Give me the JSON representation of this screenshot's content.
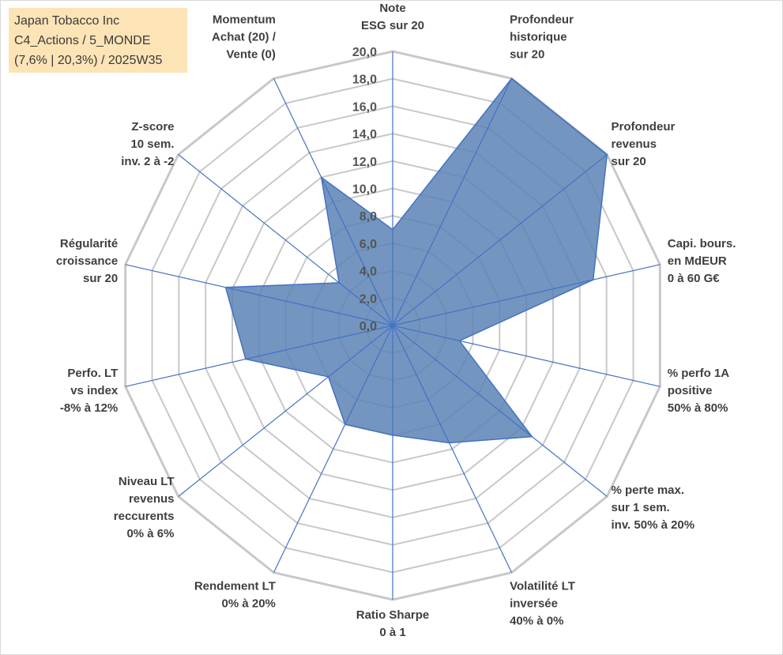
{
  "info_box": {
    "line1": "Japan Tobacco Inc",
    "line2": "C4_Actions / 5_MONDE",
    "line3": "(7,6% | 20,3%) / 2025W35"
  },
  "chart_data": {
    "type": "radar",
    "rlim": [
      0,
      20
    ],
    "ticks": [
      "0,0",
      "2,0",
      "4,0",
      "6,0",
      "8,0",
      "10,0",
      "12,0",
      "14,0",
      "16,0",
      "18,0",
      "20,0"
    ],
    "axes": [
      {
        "label": [
          "Note",
          "ESG sur 20"
        ],
        "value": 7.0
      },
      {
        "label": [
          "Profondeur",
          "historique",
          "sur 20"
        ],
        "value": 20.0
      },
      {
        "label": [
          "Profondeur",
          "revenus",
          "sur 20"
        ],
        "value": 20.0
      },
      {
        "label": [
          "Capi. bours.",
          "en MdEUR",
          "0 à 60 G€"
        ],
        "value": 15.0
      },
      {
        "label": [
          "% perfo 1A",
          "positive",
          "50% à 80%"
        ],
        "value": 5.0
      },
      {
        "label": [
          "% perte max.",
          "sur 1 sem.",
          "inv. 50% à 20%"
        ],
        "value": 13.0
      },
      {
        "label": [
          "Volatilité LT",
          "inversée",
          "40% à 0%"
        ],
        "value": 9.5
      },
      {
        "label": [
          "Ratio Sharpe",
          "0 à 1"
        ],
        "value": 8.0
      },
      {
        "label": [
          "Rendement LT",
          "0% à 20%"
        ],
        "value": 8.0
      },
      {
        "label": [
          "Niveau LT",
          "revenus",
          "reccurents",
          "0% à 6%"
        ],
        "value": 6.0
      },
      {
        "label": [
          "Perfo. LT",
          "vs index",
          "-8% à 12%"
        ],
        "value": 11.0
      },
      {
        "label": [
          "Régularité",
          "croissance",
          "sur 20"
        ],
        "value": 12.5
      },
      {
        "label": [
          "Z-score",
          "10 sem.",
          "inv. 2 à -2"
        ],
        "value": 5.0
      },
      {
        "label": [
          "Momentum",
          "Achat (20) /",
          "Vente (0)"
        ],
        "value": 12.0
      }
    ],
    "grid": true,
    "legend": "none",
    "colors": {
      "fill": "#5b82b5",
      "stroke": "#4472c4",
      "grid": "#c8c8c8",
      "spoke": "#4472c4"
    }
  }
}
